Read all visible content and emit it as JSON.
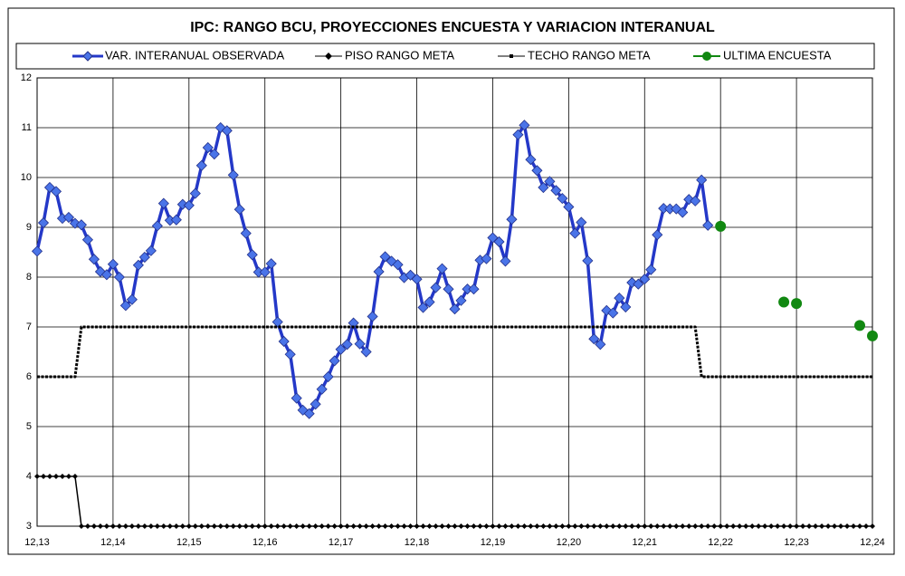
{
  "chart_data": {
    "type": "line",
    "title": "IPC: RANGO BCU, PROYECCIONES ENCUESTA Y VARIACION INTERANUAL",
    "categories": [
      "12,13",
      null,
      null,
      null,
      null,
      null,
      null,
      null,
      null,
      null,
      null,
      null,
      "12,14",
      null,
      null,
      null,
      null,
      null,
      null,
      null,
      null,
      null,
      null,
      null,
      "12,15",
      null,
      null,
      null,
      null,
      null,
      null,
      null,
      null,
      null,
      null,
      null,
      "12,16",
      null,
      null,
      null,
      null,
      null,
      null,
      null,
      null,
      null,
      null,
      null,
      "12,17",
      null,
      null,
      null,
      null,
      null,
      null,
      null,
      null,
      null,
      null,
      null,
      "12,18",
      null,
      null,
      null,
      null,
      null,
      null,
      null,
      null,
      null,
      null,
      null,
      "12,19",
      null,
      null,
      null,
      null,
      null,
      null,
      null,
      null,
      null,
      null,
      null,
      "12,20",
      null,
      null,
      null,
      null,
      null,
      null,
      null,
      null,
      null,
      null,
      null,
      "12,21",
      null,
      null,
      null,
      null,
      null,
      null,
      null,
      null,
      null,
      null,
      null,
      "12,22",
      null,
      null,
      null,
      null,
      null,
      null,
      null,
      null,
      null,
      null,
      null,
      "12,23",
      null,
      null,
      null,
      null,
      null,
      null,
      null,
      null,
      null,
      null,
      null,
      "12,24"
    ],
    "series": [
      {
        "name": "VAR. INTERANUAL OBSERVADA",
        "color": "#2438c8",
        "values": [
          8.52,
          9.09,
          9.8,
          9.72,
          9.18,
          9.2,
          9.08,
          9.05,
          8.75,
          8.36,
          8.11,
          8.05,
          8.26,
          8.0,
          7.43,
          7.55,
          8.24,
          8.4,
          8.53,
          9.03,
          9.48,
          9.14,
          9.15,
          9.46,
          9.44,
          9.68,
          10.24,
          10.6,
          10.47,
          11.0,
          10.94,
          10.05,
          9.36,
          8.88,
          8.45,
          8.1,
          8.1,
          8.27,
          7.1,
          6.71,
          6.45,
          5.57,
          5.33,
          5.26,
          5.45,
          5.75,
          6.0,
          6.32,
          6.55,
          6.65,
          7.08,
          6.66,
          6.5,
          7.21,
          8.11,
          8.41,
          8.32,
          8.25,
          7.99,
          8.04,
          7.96,
          7.39,
          7.5,
          7.79,
          8.17,
          7.76,
          7.36,
          7.53,
          7.76,
          7.76,
          8.34,
          8.37,
          8.79,
          8.71,
          8.32,
          9.16,
          10.86,
          11.05,
          10.36,
          10.14,
          9.8,
          9.92,
          9.74,
          9.58,
          9.41,
          8.88,
          9.1,
          8.33,
          6.76,
          6.65,
          7.33,
          7.28,
          7.58,
          7.4,
          7.89,
          7.86,
          7.96,
          8.15,
          8.85,
          9.38,
          9.37,
          9.37,
          9.3,
          9.56,
          9.53,
          9.95,
          9.04,
          null,
          null,
          null,
          null,
          null,
          null,
          null,
          null,
          null,
          null,
          null,
          null,
          null,
          null,
          null,
          null,
          null,
          null,
          null,
          null,
          null,
          null,
          null,
          null,
          null,
          null
        ]
      },
      {
        "name": "PISO RANGO META",
        "color": "#000000",
        "values": [
          4,
          4,
          4,
          4,
          4,
          4,
          4,
          3,
          3,
          3,
          3,
          3,
          3,
          3,
          3,
          3,
          3,
          3,
          3,
          3,
          3,
          3,
          3,
          3,
          3,
          3,
          3,
          3,
          3,
          3,
          3,
          3,
          3,
          3,
          3,
          3,
          3,
          3,
          3,
          3,
          3,
          3,
          3,
          3,
          3,
          3,
          3,
          3,
          3,
          3,
          3,
          3,
          3,
          3,
          3,
          3,
          3,
          3,
          3,
          3,
          3,
          3,
          3,
          3,
          3,
          3,
          3,
          3,
          3,
          3,
          3,
          3,
          3,
          3,
          3,
          3,
          3,
          3,
          3,
          3,
          3,
          3,
          3,
          3,
          3,
          3,
          3,
          3,
          3,
          3,
          3,
          3,
          3,
          3,
          3,
          3,
          3,
          3,
          3,
          3,
          3,
          3,
          3,
          3,
          3,
          3,
          3,
          3,
          3,
          3,
          3,
          3,
          3,
          3,
          3,
          3,
          3,
          3,
          3,
          3,
          3,
          3,
          3,
          3,
          3,
          3,
          3,
          3,
          3,
          3,
          3,
          3,
          3
        ]
      },
      {
        "name": "TECHO RANGO META",
        "color": "#000000",
        "values": [
          6,
          6,
          6,
          6,
          6,
          6,
          6,
          7,
          7,
          7,
          7,
          7,
          7,
          7,
          7,
          7,
          7,
          7,
          7,
          7,
          7,
          7,
          7,
          7,
          7,
          7,
          7,
          7,
          7,
          7,
          7,
          7,
          7,
          7,
          7,
          7,
          7,
          7,
          7,
          7,
          7,
          7,
          7,
          7,
          7,
          7,
          7,
          7,
          7,
          7,
          7,
          7,
          7,
          7,
          7,
          7,
          7,
          7,
          7,
          7,
          7,
          7,
          7,
          7,
          7,
          7,
          7,
          7,
          7,
          7,
          7,
          7,
          7,
          7,
          7,
          7,
          7,
          7,
          7,
          7,
          7,
          7,
          7,
          7,
          7,
          7,
          7,
          7,
          7,
          7,
          7,
          7,
          7,
          7,
          7,
          7,
          7,
          7,
          7,
          7,
          7,
          7,
          7,
          7,
          7,
          6,
          6,
          6,
          6,
          6,
          6,
          6,
          6,
          6,
          6,
          6,
          6,
          6,
          6,
          6,
          6,
          6,
          6,
          6,
          6,
          6,
          6,
          6,
          6,
          6,
          6,
          6,
          6
        ]
      },
      {
        "name": "ULTIMA ENCUESTA",
        "color": "#118811",
        "values": [
          null,
          null,
          null,
          null,
          null,
          null,
          null,
          null,
          null,
          null,
          null,
          null,
          null,
          null,
          null,
          null,
          null,
          null,
          null,
          null,
          null,
          null,
          null,
          null,
          null,
          null,
          null,
          null,
          null,
          null,
          null,
          null,
          null,
          null,
          null,
          null,
          null,
          null,
          null,
          null,
          null,
          null,
          null,
          null,
          null,
          null,
          null,
          null,
          null,
          null,
          null,
          null,
          null,
          null,
          null,
          null,
          null,
          null,
          null,
          null,
          null,
          null,
          null,
          null,
          null,
          null,
          null,
          null,
          null,
          null,
          null,
          null,
          null,
          null,
          null,
          null,
          null,
          null,
          null,
          null,
          null,
          null,
          null,
          null,
          null,
          null,
          null,
          null,
          null,
          null,
          null,
          null,
          null,
          null,
          null,
          null,
          null,
          null,
          null,
          null,
          null,
          null,
          null,
          null,
          null,
          null,
          null,
          null,
          9.02,
          null,
          null,
          null,
          null,
          null,
          null,
          null,
          null,
          null,
          7.5,
          null,
          7.47,
          null,
          null,
          null,
          null,
          null,
          null,
          null,
          null,
          null,
          7.03,
          null,
          6.82
        ]
      }
    ],
    "ylim": [
      3,
      12
    ],
    "yticks": [
      3,
      4,
      5,
      6,
      7,
      8,
      9,
      10,
      11,
      12
    ],
    "grid": true
  }
}
